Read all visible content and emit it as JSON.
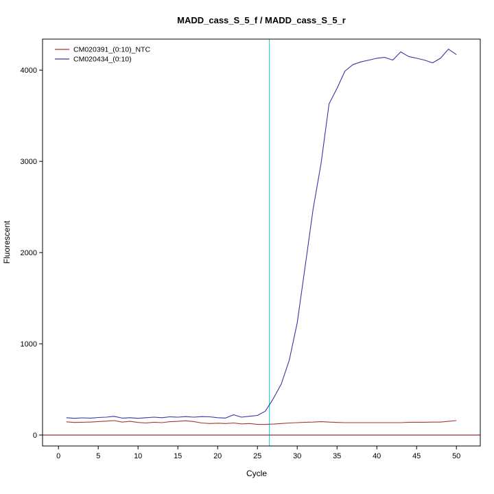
{
  "chart_data": {
    "type": "line",
    "title": "MADD_cass_S_5_f / MADD_cass_S_5_r",
    "xlabel": "Cycle",
    "ylabel": "Fluorescent",
    "xlim": [
      -2,
      53
    ],
    "ylim": [
      -120,
      4340
    ],
    "x_ticks": [
      0,
      5,
      10,
      15,
      20,
      25,
      30,
      35,
      40,
      45,
      50
    ],
    "y_ticks": [
      0,
      1000,
      2000,
      3000,
      4000
    ],
    "grid": false,
    "legend_position": "top-left",
    "threshold_line_y": 0,
    "threshold_color": "#8b1a1a",
    "ct_marker_x": 26.5,
    "ct_marker_color": "#00d5d5",
    "box_color": "#000000",
    "x": [
      1,
      2,
      3,
      4,
      5,
      6,
      7,
      8,
      9,
      10,
      11,
      12,
      13,
      14,
      15,
      16,
      17,
      18,
      19,
      20,
      21,
      22,
      23,
      24,
      25,
      26,
      27,
      28,
      29,
      30,
      31,
      32,
      33,
      34,
      35,
      36,
      37,
      38,
      39,
      40,
      41,
      42,
      43,
      44,
      45,
      46,
      47,
      48,
      49,
      50
    ],
    "series": [
      {
        "name": "CM020391_(0:10)_NTC",
        "color": "#a53535",
        "values": [
          145,
          138,
          140,
          142,
          148,
          152,
          158,
          142,
          150,
          138,
          132,
          140,
          136,
          146,
          150,
          156,
          148,
          132,
          126,
          130,
          126,
          132,
          122,
          126,
          116,
          116,
          120,
          126,
          132,
          136,
          140,
          142,
          146,
          142,
          138,
          136,
          136,
          136,
          136,
          136,
          136,
          136,
          136,
          140,
          140,
          140,
          142,
          142,
          150,
          158
        ]
      },
      {
        "name": "CM020434_(0:10)",
        "color": "#3434a4",
        "values": [
          190,
          183,
          188,
          185,
          192,
          196,
          205,
          185,
          190,
          183,
          190,
          196,
          190,
          200,
          196,
          202,
          196,
          202,
          200,
          190,
          186,
          222,
          196,
          206,
          215,
          262,
          400,
          560,
          820,
          1230,
          1850,
          2480,
          2980,
          3630,
          3800,
          3990,
          4060,
          4090,
          4110,
          4130,
          4140,
          4110,
          4200,
          4150,
          4130,
          4110,
          4080,
          4130,
          4230,
          4170
        ]
      }
    ]
  }
}
